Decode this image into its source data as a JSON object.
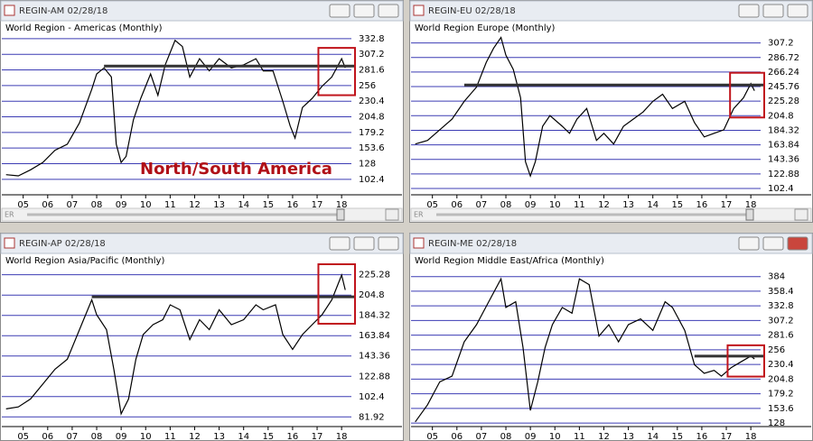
{
  "windows": [
    {
      "title": "REGIN-AM 02/28/18",
      "scroll_label": "ER"
    },
    {
      "title": "REGIN-EU 02/28/18",
      "scroll_label": "ER"
    },
    {
      "title": "REGIN-AP 02/28/18"
    },
    {
      "title": "REGIN-ME 02/28/18"
    }
  ],
  "chart_data": [
    {
      "type": "line",
      "title": "World Region - Americas (Monthly)",
      "annotation": "North/South America",
      "color": "#000000",
      "grid": true,
      "x": [
        2004.3,
        2004.8,
        2005.3,
        2005.8,
        2006.3,
        2006.8,
        2007.3,
        2007.8,
        2008.0,
        2008.3,
        2008.6,
        2008.8,
        2009.0,
        2009.2,
        2009.5,
        2009.8,
        2010.2,
        2010.5,
        2010.8,
        2011.2,
        2011.5,
        2011.8,
        2012.2,
        2012.6,
        2013.0,
        2013.5,
        2014.0,
        2014.5,
        2014.8,
        2015.2,
        2015.6,
        2015.9,
        2016.1,
        2016.4,
        2016.8,
        2017.2,
        2017.6,
        2018.0,
        2018.15
      ],
      "values": [
        110,
        108,
        118,
        130,
        150,
        160,
        195,
        250,
        275,
        285,
        270,
        160,
        130,
        140,
        200,
        235,
        275,
        240,
        290,
        330,
        320,
        270,
        300,
        280,
        300,
        285,
        290,
        300,
        280,
        280,
        230,
        190,
        170,
        220,
        235,
        255,
        270,
        300,
        285
      ],
      "reference_line": {
        "y": 288,
        "x_start": 2008.3
      },
      "xlim": [
        2004.2,
        2018.4
      ],
      "ylim": [
        80,
        343
      ],
      "xticks": [
        {
          "value": 2005,
          "label": "05"
        },
        {
          "value": 2006,
          "label": "06"
        },
        {
          "value": 2007,
          "label": "07"
        },
        {
          "value": 2008,
          "label": "08"
        },
        {
          "value": 2009,
          "label": "09"
        },
        {
          "value": 2010,
          "label": "10"
        },
        {
          "value": 2011,
          "label": "11"
        },
        {
          "value": 2012,
          "label": "12"
        },
        {
          "value": 2013,
          "label": "13"
        },
        {
          "value": 2014,
          "label": "14"
        },
        {
          "value": 2015,
          "label": "15"
        },
        {
          "value": 2016,
          "label": "16"
        },
        {
          "value": 2017,
          "label": "17"
        },
        {
          "value": 2018,
          "label": "18"
        }
      ],
      "yticks": [
        102.4,
        128,
        153.6,
        179.2,
        204.8,
        230.4,
        256,
        281.6,
        307.2,
        332.8
      ]
    },
    {
      "type": "line",
      "title": "World Region Europe (Monthly)",
      "color": "#000000",
      "grid": true,
      "x": [
        2004.3,
        2004.8,
        2005.3,
        2005.8,
        2006.3,
        2006.8,
        2007.2,
        2007.5,
        2007.8,
        2008.0,
        2008.3,
        2008.6,
        2008.8,
        2009.0,
        2009.2,
        2009.5,
        2009.8,
        2010.3,
        2010.6,
        2010.9,
        2011.3,
        2011.7,
        2012.0,
        2012.4,
        2012.8,
        2013.2,
        2013.6,
        2014.0,
        2014.4,
        2014.8,
        2015.3,
        2015.7,
        2016.1,
        2016.5,
        2016.9,
        2017.3,
        2017.7,
        2018.0,
        2018.15
      ],
      "values": [
        165,
        170,
        185,
        200,
        225,
        245,
        280,
        300,
        315,
        290,
        270,
        230,
        140,
        120,
        140,
        190,
        205,
        190,
        180,
        200,
        215,
        170,
        180,
        165,
        190,
        200,
        210,
        225,
        235,
        215,
        225,
        195,
        175,
        180,
        185,
        215,
        230,
        250,
        240
      ],
      "reference_line": {
        "y": 248,
        "x_start": 2006.3
      },
      "xlim": [
        2004.2,
        2018.4
      ],
      "ylim": [
        96,
        322
      ],
      "xticks": [
        {
          "value": 2005,
          "label": "05"
        },
        {
          "value": 2006,
          "label": "06"
        },
        {
          "value": 2007,
          "label": "07"
        },
        {
          "value": 2008,
          "label": "08"
        },
        {
          "value": 2009,
          "label": "09"
        },
        {
          "value": 2010,
          "label": "10"
        },
        {
          "value": 2011,
          "label": "11"
        },
        {
          "value": 2012,
          "label": "12"
        },
        {
          "value": 2013,
          "label": "13"
        },
        {
          "value": 2014,
          "label": "14"
        },
        {
          "value": 2015,
          "label": "15"
        },
        {
          "value": 2016,
          "label": "16"
        },
        {
          "value": 2017,
          "label": "17"
        },
        {
          "value": 2018,
          "label": "18"
        }
      ],
      "yticks": [
        102.4,
        122.88,
        143.36,
        163.84,
        184.32,
        204.8,
        225.28,
        245.76,
        266.24,
        286.72,
        307.2
      ]
    },
    {
      "type": "line",
      "title": "World Region Asia/Pacific (Monthly)",
      "color": "#000000",
      "grid": true,
      "x": [
        2004.3,
        2004.8,
        2005.3,
        2005.8,
        2006.3,
        2006.8,
        2007.3,
        2007.8,
        2008.0,
        2008.4,
        2008.7,
        2009.0,
        2009.3,
        2009.6,
        2009.9,
        2010.3,
        2010.7,
        2011.0,
        2011.4,
        2011.8,
        2012.2,
        2012.6,
        2013.0,
        2013.5,
        2014.0,
        2014.5,
        2014.8,
        2015.3,
        2015.6,
        2016.0,
        2016.4,
        2016.8,
        2017.2,
        2017.6,
        2018.0,
        2018.15
      ],
      "values": [
        90,
        92,
        100,
        115,
        130,
        140,
        170,
        200,
        185,
        170,
        130,
        85,
        100,
        140,
        165,
        175,
        180,
        195,
        190,
        160,
        180,
        170,
        190,
        175,
        180,
        195,
        190,
        195,
        165,
        150,
        165,
        175,
        185,
        200,
        225,
        210
      ],
      "reference_line": {
        "y": 203,
        "x_start": 2007.8
      },
      "xlim": [
        2004.2,
        2018.4
      ],
      "ylim": [
        74,
        235
      ],
      "xticks": [
        {
          "value": 2005,
          "label": "05"
        },
        {
          "value": 2006,
          "label": "06"
        },
        {
          "value": 2007,
          "label": "07"
        },
        {
          "value": 2008,
          "label": "08"
        },
        {
          "value": 2009,
          "label": "09"
        },
        {
          "value": 2010,
          "label": "10"
        },
        {
          "value": 2011,
          "label": "11"
        },
        {
          "value": 2012,
          "label": "12"
        },
        {
          "value": 2013,
          "label": "13"
        },
        {
          "value": 2014,
          "label": "14"
        },
        {
          "value": 2015,
          "label": "15"
        },
        {
          "value": 2016,
          "label": "16"
        },
        {
          "value": 2017,
          "label": "17"
        },
        {
          "value": 2018,
          "label": "18"
        }
      ],
      "yticks": [
        81.92,
        102.4,
        122.88,
        143.36,
        163.84,
        184.32,
        204.8,
        225.28
      ]
    },
    {
      "type": "line",
      "title": "World Region Middle East/Africa (Monthly)",
      "color": "#000000",
      "grid": true,
      "x": [
        2004.3,
        2004.8,
        2005.3,
        2005.8,
        2006.3,
        2006.8,
        2007.3,
        2007.8,
        2008.0,
        2008.4,
        2008.7,
        2009.0,
        2009.3,
        2009.6,
        2009.9,
        2010.3,
        2010.7,
        2011.0,
        2011.4,
        2011.8,
        2012.2,
        2012.6,
        2013.0,
        2013.5,
        2014.0,
        2014.5,
        2014.8,
        2015.3,
        2015.7,
        2016.1,
        2016.5,
        2016.8,
        2017.2,
        2017.6,
        2018.0,
        2018.15
      ],
      "values": [
        130,
        160,
        200,
        210,
        270,
        300,
        340,
        380,
        330,
        340,
        260,
        150,
        200,
        260,
        300,
        330,
        320,
        380,
        370,
        280,
        300,
        270,
        300,
        310,
        290,
        340,
        330,
        290,
        230,
        215,
        220,
        210,
        225,
        235,
        245,
        240
      ],
      "reference_line": {
        "y": 245,
        "x_start": 2015.7
      },
      "xlim": [
        2004.2,
        2018.4
      ],
      "ylim": [
        125,
        404
      ],
      "xticks": [
        {
          "value": 2005,
          "label": "05"
        },
        {
          "value": 2006,
          "label": "06"
        },
        {
          "value": 2007,
          "label": "07"
        },
        {
          "value": 2008,
          "label": "08"
        },
        {
          "value": 2009,
          "label": "09"
        },
        {
          "value": 2010,
          "label": "10"
        },
        {
          "value": 2011,
          "label": "11"
        },
        {
          "value": 2012,
          "label": "12"
        },
        {
          "value": 2013,
          "label": "13"
        },
        {
          "value": 2014,
          "label": "14"
        },
        {
          "value": 2015,
          "label": "15"
        },
        {
          "value": 2016,
          "label": "16"
        },
        {
          "value": 2017,
          "label": "17"
        },
        {
          "value": 2018,
          "label": "18"
        }
      ],
      "yticks": [
        128,
        153.6,
        179.2,
        204.8,
        230.4,
        256,
        281.6,
        307.2,
        332.8,
        358.4,
        384
      ]
    }
  ]
}
